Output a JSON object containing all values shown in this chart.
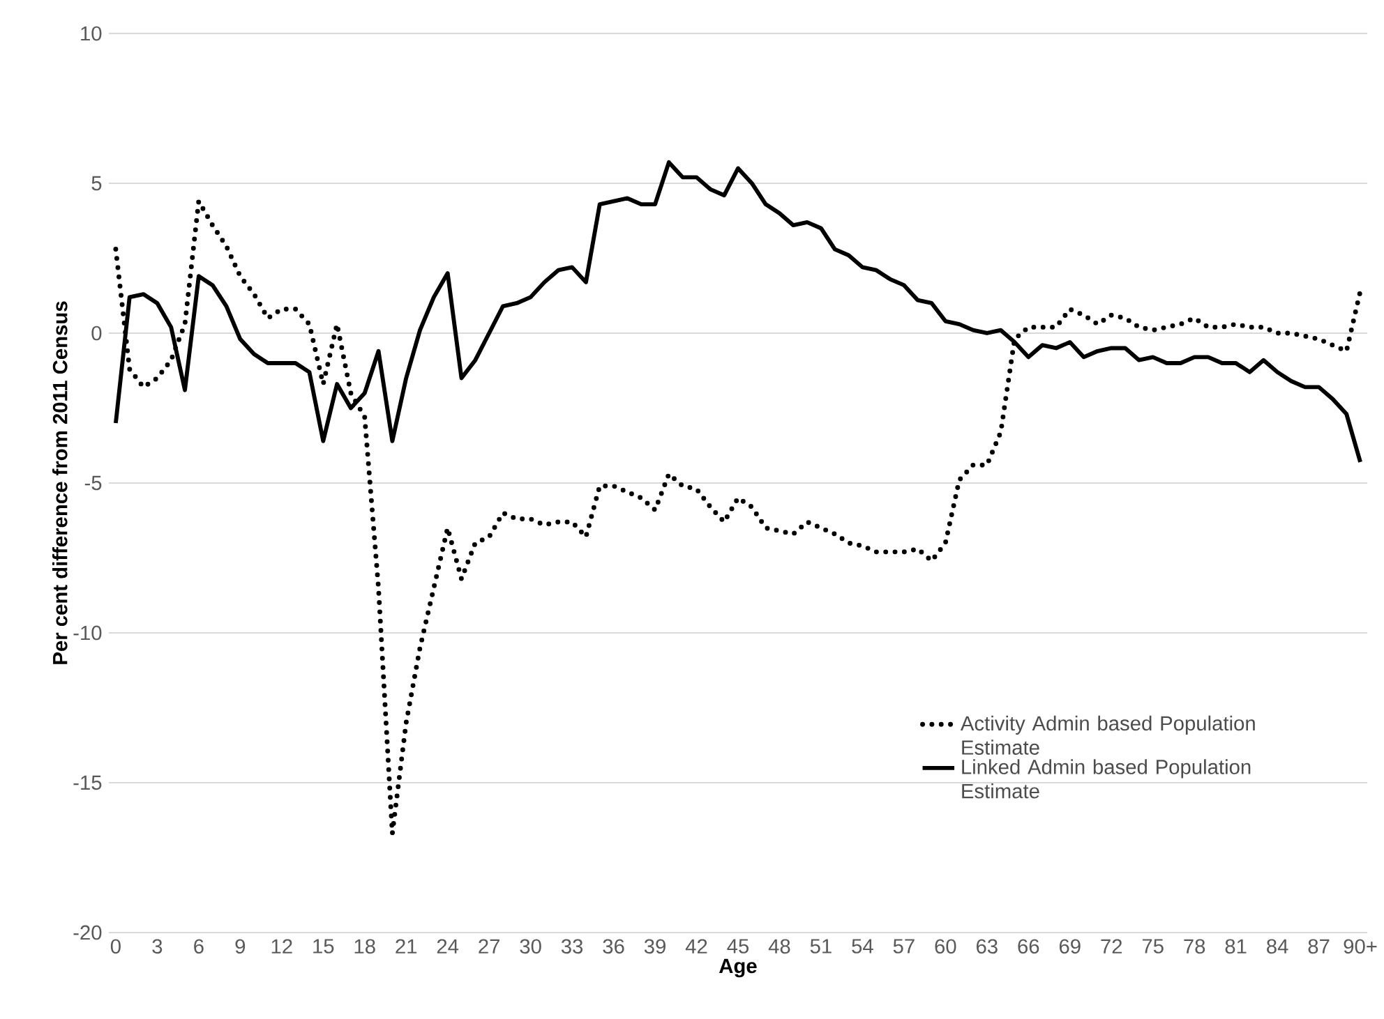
{
  "chart_data": {
    "type": "line",
    "xlabel": "Age",
    "ylabel": "Per cent difference from 2011 Census",
    "categories": [
      "0",
      null,
      null,
      "3",
      null,
      null,
      "6",
      null,
      null,
      "9",
      null,
      null,
      "12",
      null,
      null,
      "15",
      null,
      null,
      "18",
      null,
      null,
      "21",
      null,
      null,
      "24",
      null,
      null,
      "27",
      null,
      null,
      "30",
      null,
      null,
      "33",
      null,
      null,
      "36",
      null,
      null,
      "39",
      null,
      null,
      "42",
      null,
      null,
      "45",
      null,
      null,
      "48",
      null,
      null,
      "51",
      null,
      null,
      "54",
      null,
      null,
      "57",
      null,
      null,
      "60",
      null,
      null,
      "63",
      null,
      null,
      "66",
      null,
      null,
      "69",
      null,
      null,
      "72",
      null,
      null,
      "75",
      null,
      null,
      "78",
      null,
      null,
      "81",
      null,
      null,
      "84",
      null,
      null,
      "87",
      null,
      null,
      "90+"
    ],
    "series": [
      {
        "name": "Activity Admin based Population Estimate",
        "color": "#000000",
        "line_style": "dotted",
        "values": [
          2.8,
          -1.2,
          -1.8,
          -1.5,
          -0.9,
          0.3,
          4.4,
          3.6,
          2.9,
          1.9,
          1.3,
          0.5,
          0.8,
          0.8,
          0.3,
          -1.7,
          0.3,
          -2.0,
          -2.8,
          -8.5,
          -16.7,
          -13.0,
          -10.5,
          -8.5,
          -6.5,
          -8.2,
          -7.0,
          -6.8,
          -6.0,
          -6.2,
          -6.2,
          -6.4,
          -6.3,
          -6.3,
          -6.8,
          -5.1,
          -5.1,
          -5.3,
          -5.5,
          -5.9,
          -4.7,
          -5.1,
          -5.2,
          -5.8,
          -6.3,
          -5.5,
          -5.8,
          -6.5,
          -6.6,
          -6.7,
          -6.3,
          -6.5,
          -6.7,
          -7.0,
          -7.1,
          -7.3,
          -7.3,
          -7.3,
          -7.2,
          -7.6,
          -7.0,
          -4.9,
          -4.4,
          -4.4,
          -3.3,
          -0.2,
          0.2,
          0.2,
          0.2,
          0.8,
          0.6,
          0.3,
          0.6,
          0.5,
          0.2,
          0.1,
          0.2,
          0.3,
          0.5,
          0.2,
          0.2,
          0.3,
          0.2,
          0.2,
          0.0,
          0.0,
          -0.1,
          -0.2,
          -0.4,
          -0.6,
          1.4
        ]
      },
      {
        "name": "Linked Admin based Population Estimate",
        "color": "#000000",
        "line_style": "solid",
        "values": [
          -3.0,
          1.2,
          1.3,
          1.0,
          0.2,
          -1.9,
          1.9,
          1.6,
          0.9,
          -0.2,
          -0.7,
          -1.0,
          -1.0,
          -1.0,
          -1.3,
          -3.6,
          -1.7,
          -2.5,
          -2.0,
          -0.6,
          -3.6,
          -1.5,
          0.1,
          1.2,
          2.0,
          -1.5,
          -0.9,
          0.0,
          0.9,
          1.0,
          1.2,
          1.7,
          2.1,
          2.2,
          1.7,
          4.3,
          4.4,
          4.5,
          4.3,
          4.3,
          5.7,
          5.2,
          5.2,
          4.8,
          4.6,
          5.5,
          5.0,
          4.3,
          4.0,
          3.6,
          3.7,
          3.5,
          2.8,
          2.6,
          2.2,
          2.1,
          1.8,
          1.6,
          1.1,
          1.0,
          0.4,
          0.3,
          0.1,
          0.0,
          0.1,
          -0.3,
          -0.8,
          -0.4,
          -0.5,
          -0.3,
          -0.8,
          -0.6,
          -0.5,
          -0.5,
          -0.9,
          -0.8,
          -1.0,
          -1.0,
          -0.8,
          -0.8,
          -1.0,
          -1.0,
          -1.3,
          -0.9,
          -1.3,
          -1.6,
          -1.8,
          -1.8,
          -2.2,
          -2.7,
          -4.3
        ]
      }
    ],
    "ylim": [
      -20,
      10
    ],
    "yticks": [
      -20,
      -15,
      -10,
      -5,
      0,
      5,
      10
    ],
    "grid": "y",
    "legend": "bottom right"
  }
}
